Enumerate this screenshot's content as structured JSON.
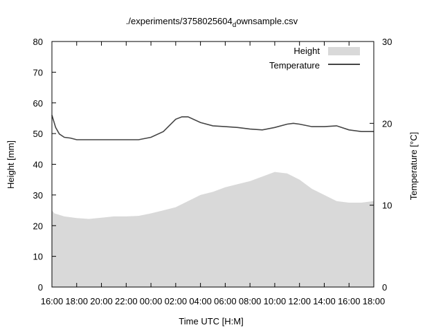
{
  "chart_data": {
    "type": "area",
    "title_main": "./experiments/3758025604",
    "title_sub": "d",
    "title_rest": "ownsample.csv",
    "xlabel": "Time UTC [H:M]",
    "ylabel": "Height [mm]",
    "y2label": "Temperature [°C]",
    "xticks": [
      "16:00",
      "18:00",
      "20:00",
      "22:00",
      "00:00",
      "02:00",
      "04:00",
      "06:00",
      "08:00",
      "10:00",
      "12:00",
      "14:00",
      "16:00",
      "18:00"
    ],
    "ylim": [
      0,
      80
    ],
    "yticks": [
      0,
      10,
      20,
      30,
      40,
      50,
      60,
      70,
      80
    ],
    "y2lim": [
      0,
      30
    ],
    "y2ticks": [
      0,
      10,
      20,
      30
    ],
    "legend_position": "top-right",
    "colors": {
      "height": "#d9d9d9",
      "temperature": "#444444"
    },
    "series": [
      {
        "name": "Height",
        "kind": "area",
        "axis": "left",
        "x": [
          0,
          0.2,
          1,
          2,
          3,
          4,
          5,
          6,
          7,
          8,
          9,
          10,
          11,
          12,
          13,
          14,
          15,
          16,
          17,
          18,
          19,
          20,
          21,
          22,
          23,
          24,
          25,
          26
        ],
        "y": [
          25,
          24,
          23,
          22.5,
          22.2,
          22.6,
          23,
          23,
          23.2,
          24,
          25,
          26,
          28,
          30,
          31,
          32.5,
          33.5,
          34.5,
          36,
          37.5,
          37,
          35,
          32,
          30,
          28,
          27.5,
          27.5,
          28
        ]
      },
      {
        "name": "Temperature",
        "kind": "line",
        "axis": "right",
        "x": [
          0,
          0.3,
          0.6,
          1,
          1.5,
          2,
          3,
          4,
          5,
          6,
          7,
          8,
          9,
          10,
          10.5,
          11,
          12,
          13,
          14,
          15,
          16,
          17,
          18,
          19,
          19.5,
          20,
          21,
          22,
          23,
          24,
          25,
          26
        ],
        "y": [
          21,
          19.5,
          18.7,
          18.3,
          18.2,
          18,
          18,
          18,
          18,
          18,
          18,
          18.3,
          19,
          20.5,
          20.8,
          20.8,
          20.1,
          19.7,
          19.6,
          19.5,
          19.3,
          19.2,
          19.5,
          19.9,
          20,
          19.9,
          19.6,
          19.6,
          19.7,
          19.2,
          19,
          19
        ]
      }
    ]
  }
}
